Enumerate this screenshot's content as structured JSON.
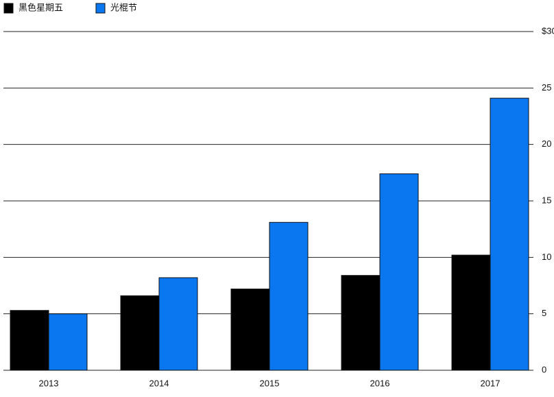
{
  "chart_data": {
    "type": "bar",
    "categories": [
      "2013",
      "2014",
      "2015",
      "2016",
      "2017"
    ],
    "series": [
      {
        "name": "黑色星期五",
        "color": "#000000",
        "values": [
          5.3,
          6.6,
          7.2,
          8.4,
          10.2
        ]
      },
      {
        "name": "光棍节",
        "color": "#0a77f0",
        "values": [
          5.0,
          8.2,
          13.1,
          17.4,
          24.1
        ]
      }
    ],
    "ylim": [
      0,
      30
    ],
    "yticks": [
      0,
      5,
      10,
      15,
      20,
      25,
      {
        "value": 30,
        "label": "$30"
      }
    ],
    "grid": true,
    "legend": "top-left"
  }
}
